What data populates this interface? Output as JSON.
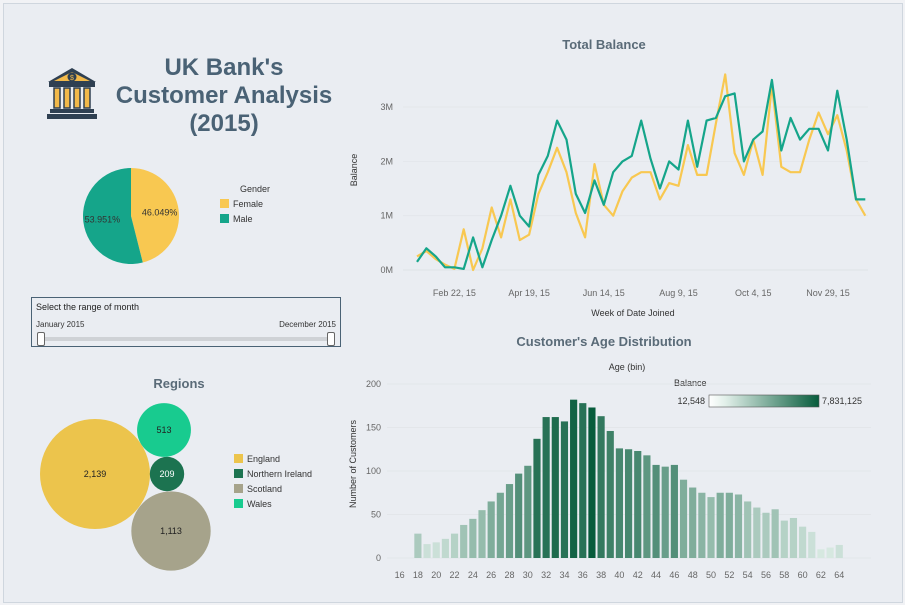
{
  "dashboard": {
    "title": "UK Bank's Customer Analysis (2015)",
    "title_line1": "UK Bank's",
    "title_line2": "Customer Analysis",
    "title_line3": "(2015)"
  },
  "icons": {
    "logo": "bank-building-icon"
  },
  "colors": {
    "female": "#f8c851",
    "male": "#15a58a",
    "england": "#ecc44c",
    "northern_ireland": "#1c7350",
    "scotland": "#a6a38b",
    "wales": "#18cb8f",
    "heat_low": "#e1efe9",
    "heat_high": "#075c3c",
    "title_text": "#4a6275"
  },
  "filter": {
    "label": "Select the range of month",
    "from": "January 2015",
    "to": "December 2015"
  },
  "gender_chart": {
    "type": "pie",
    "legend_title": "Gender",
    "slices": [
      {
        "label": "Female",
        "value": 46.049,
        "display": "46.049%"
      },
      {
        "label": "Male",
        "value": 53.951,
        "display": "53.951%"
      }
    ]
  },
  "regions_chart": {
    "type": "packed-bubble",
    "title": "Regions",
    "items": [
      {
        "label": "England",
        "value": 2139,
        "display": "2,139"
      },
      {
        "label": "Northern Ireland",
        "value": 209,
        "display": "209"
      },
      {
        "label": "Scotland",
        "value": 1113,
        "display": "1,113"
      },
      {
        "label": "Wales",
        "value": 513,
        "display": "513"
      }
    ]
  },
  "chart_data": [
    {
      "type": "line",
      "title": "Total Balance",
      "xlabel": "Week of Date Joined",
      "ylabel": "Balance",
      "x_ticks": [
        "Feb 22, 15",
        "Apr 19, 15",
        "Jun 14, 15",
        "Aug 9, 15",
        "Oct 4, 15",
        "Nov 29, 15"
      ],
      "y_ticks": [
        "0M",
        "1M",
        "2M",
        "3M"
      ],
      "ylim": [
        0,
        3.7
      ],
      "x": [
        "2015-01-25",
        "2015-02-01",
        "2015-02-08",
        "2015-02-15",
        "2015-02-22",
        "2015-03-01",
        "2015-03-08",
        "2015-03-15",
        "2015-03-22",
        "2015-03-29",
        "2015-04-05",
        "2015-04-12",
        "2015-04-19",
        "2015-04-26",
        "2015-05-03",
        "2015-05-10",
        "2015-05-17",
        "2015-05-24",
        "2015-05-31",
        "2015-06-07",
        "2015-06-14",
        "2015-06-21",
        "2015-06-28",
        "2015-07-05",
        "2015-07-12",
        "2015-07-19",
        "2015-07-26",
        "2015-08-02",
        "2015-08-09",
        "2015-08-16",
        "2015-08-23",
        "2015-08-30",
        "2015-09-06",
        "2015-09-13",
        "2015-09-20",
        "2015-09-27",
        "2015-10-04",
        "2015-10-11",
        "2015-10-18",
        "2015-10-25",
        "2015-11-01",
        "2015-11-08",
        "2015-11-15",
        "2015-11-22",
        "2015-11-29",
        "2015-12-06",
        "2015-12-13",
        "2015-12-20",
        "2015-12-27"
      ],
      "y_unit": "M",
      "series": [
        {
          "name": "Male",
          "color": "#15a58a",
          "values": [
            0.15,
            0.4,
            0.25,
            0.05,
            0.05,
            0.02,
            0.6,
            0.05,
            0.55,
            1.0,
            1.55,
            1.0,
            0.8,
            1.75,
            2.1,
            2.75,
            2.4,
            1.4,
            1.05,
            1.65,
            1.2,
            1.8,
            2.0,
            2.1,
            2.75,
            2.05,
            1.5,
            2.0,
            1.85,
            2.75,
            1.9,
            2.75,
            2.8,
            3.2,
            3.25,
            2.0,
            2.4,
            2.55,
            3.5,
            2.2,
            2.8,
            2.4,
            2.6,
            2.6,
            2.2,
            3.3,
            2.4,
            1.3,
            1.3
          ]
        },
        {
          "name": "Female",
          "color": "#f8c851",
          "values": [
            0.25,
            0.35,
            0.2,
            0.1,
            0.02,
            0.75,
            0.0,
            0.4,
            1.15,
            0.6,
            1.3,
            0.55,
            0.65,
            1.4,
            1.8,
            2.25,
            1.8,
            1.05,
            0.6,
            1.95,
            1.2,
            1.0,
            1.45,
            1.7,
            1.8,
            1.8,
            1.3,
            1.6,
            1.55,
            2.3,
            1.75,
            1.75,
            2.7,
            3.6,
            2.15,
            1.75,
            2.4,
            1.75,
            3.4,
            1.9,
            1.8,
            1.8,
            2.4,
            2.9,
            2.5,
            2.85,
            2.2,
            1.3,
            1.0
          ]
        }
      ]
    },
    {
      "type": "bar",
      "title": "Customer's Age Distribution",
      "subtitle": "Age (bin)",
      "xlabel": "",
      "ylabel": "Number of Customers",
      "x_ticks": [
        "16",
        "18",
        "20",
        "22",
        "24",
        "26",
        "28",
        "30",
        "32",
        "34",
        "36",
        "38",
        "40",
        "42",
        "44",
        "46",
        "48",
        "50",
        "52",
        "54",
        "56",
        "58",
        "60",
        "62",
        "64"
      ],
      "y_ticks": [
        "0",
        "50",
        "100",
        "150",
        "200"
      ],
      "ylim": [
        0,
        200
      ],
      "color_legend_title": "Balance",
      "color_min": "12,548",
      "color_max": "7,831,125",
      "categories": [
        "18",
        "19",
        "20",
        "21",
        "22",
        "23",
        "24",
        "25",
        "26",
        "27",
        "28",
        "29",
        "30",
        "31",
        "32",
        "33",
        "34",
        "35",
        "36",
        "37",
        "38",
        "39",
        "40",
        "41",
        "42",
        "43",
        "44",
        "45",
        "46",
        "47",
        "48",
        "49",
        "50",
        "51",
        "52",
        "53",
        "54",
        "55",
        "56",
        "57",
        "58",
        "59",
        "60",
        "61",
        "62",
        "63",
        "64"
      ],
      "values": [
        28,
        16,
        18,
        22,
        28,
        38,
        45,
        55,
        65,
        75,
        85,
        97,
        106,
        137,
        162,
        162,
        157,
        182,
        178,
        173,
        163,
        146,
        126,
        125,
        123,
        118,
        107,
        105,
        107,
        90,
        81,
        75,
        70,
        75,
        75,
        73,
        65,
        58,
        52,
        56,
        43,
        46,
        36,
        30,
        10,
        12,
        15
      ],
      "color_levels": [
        0.25,
        0.1,
        0.1,
        0.15,
        0.2,
        0.3,
        0.35,
        0.35,
        0.45,
        0.5,
        0.55,
        0.65,
        0.6,
        0.85,
        0.85,
        0.9,
        0.85,
        0.95,
        0.85,
        1.0,
        0.8,
        0.75,
        0.7,
        0.7,
        0.7,
        0.6,
        0.65,
        0.55,
        0.65,
        0.45,
        0.45,
        0.4,
        0.35,
        0.45,
        0.45,
        0.4,
        0.3,
        0.25,
        0.25,
        0.3,
        0.2,
        0.2,
        0.15,
        0.1,
        0.05,
        0.05,
        0.1
      ]
    }
  ]
}
